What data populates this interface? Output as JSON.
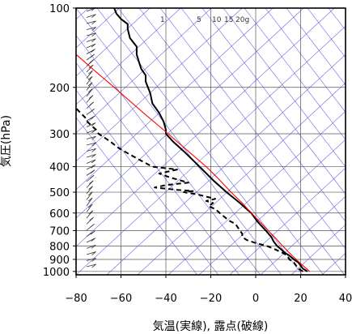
{
  "chart_data": {
    "type": "line",
    "title": "",
    "xlabel": "気温(実線), 露点(破線)",
    "ylabel": "気圧(hPa)",
    "xlim": [
      -80,
      40
    ],
    "ylim": [
      1030,
      100
    ],
    "y_scale": "log",
    "x_ticks": [
      -80,
      -60,
      -40,
      -20,
      0,
      20,
      40
    ],
    "x_tick_labels": [
      "−80",
      "−60",
      "−40",
      "−20",
      "0",
      "20",
      "40"
    ],
    "y_ticks": [
      1000,
      900,
      800,
      700,
      600,
      500,
      400,
      300,
      200,
      100
    ],
    "y_tick_labels": [
      "1000",
      "900",
      "800",
      "700",
      "600",
      "500",
      "400",
      "300",
      "200",
      "100"
    ],
    "grid": true,
    "mixing_ratio_labels": [
      "1",
      "5",
      "10",
      "15",
      "20g"
    ],
    "colors": {
      "temperature": "#000000",
      "dewpoint": "#000000",
      "parcel": "#ff0000",
      "isotherms_adiabats": "#5a5ae6",
      "grid": "#555555"
    },
    "series": [
      {
        "key": "temperature",
        "style": "solid",
        "points": [
          {
            "p": 1000,
            "x": 23
          },
          {
            "p": 975,
            "x": 21
          },
          {
            "p": 950,
            "x": 20
          },
          {
            "p": 925,
            "x": 19
          },
          {
            "p": 900,
            "x": 17
          },
          {
            "p": 870,
            "x": 15
          },
          {
            "p": 850,
            "x": 13
          },
          {
            "p": 820,
            "x": 11
          },
          {
            "p": 800,
            "x": 9.5
          },
          {
            "p": 770,
            "x": 8
          },
          {
            "p": 740,
            "x": 7
          },
          {
            "p": 700,
            "x": 4.5
          },
          {
            "p": 650,
            "x": 1
          },
          {
            "p": 600,
            "x": -2
          },
          {
            "p": 570,
            "x": -5
          },
          {
            "p": 550,
            "x": -7
          },
          {
            "p": 500,
            "x": -13
          },
          {
            "p": 450,
            "x": -19
          },
          {
            "p": 400,
            "x": -25
          },
          {
            "p": 350,
            "x": -32
          },
          {
            "p": 320,
            "x": -37
          },
          {
            "p": 300,
            "x": -40
          },
          {
            "p": 290,
            "x": -40
          },
          {
            "p": 270,
            "x": -41
          },
          {
            "p": 250,
            "x": -43
          },
          {
            "p": 230,
            "x": -46
          },
          {
            "p": 210,
            "x": -47
          },
          {
            "p": 190,
            "x": -49
          },
          {
            "p": 180,
            "x": -49
          },
          {
            "p": 170,
            "x": -51
          },
          {
            "p": 160,
            "x": -52
          },
          {
            "p": 150,
            "x": -53
          },
          {
            "p": 140,
            "x": -53
          },
          {
            "p": 130,
            "x": -56
          },
          {
            "p": 120,
            "x": -57
          },
          {
            "p": 115,
            "x": -57
          },
          {
            "p": 110,
            "x": -60
          },
          {
            "p": 105,
            "x": -62
          },
          {
            "p": 100,
            "x": -63
          }
        ]
      },
      {
        "key": "dewpoint",
        "style": "dashed",
        "points": [
          {
            "p": 1000,
            "x": 21
          },
          {
            "p": 975,
            "x": 19
          },
          {
            "p": 950,
            "x": 18
          },
          {
            "p": 925,
            "x": 17
          },
          {
            "p": 900,
            "x": 15
          },
          {
            "p": 870,
            "x": 14
          },
          {
            "p": 850,
            "x": 12
          },
          {
            "p": 820,
            "x": 8
          },
          {
            "p": 800,
            "x": 5
          },
          {
            "p": 780,
            "x": 0
          },
          {
            "p": 760,
            "x": -4
          },
          {
            "p": 740,
            "x": -6
          },
          {
            "p": 720,
            "x": -6
          },
          {
            "p": 700,
            "x": -7
          },
          {
            "p": 680,
            "x": -8
          },
          {
            "p": 660,
            "x": -9
          },
          {
            "p": 640,
            "x": -12
          },
          {
            "p": 620,
            "x": -14
          },
          {
            "p": 600,
            "x": -16
          },
          {
            "p": 580,
            "x": -18
          },
          {
            "p": 565,
            "x": -21
          },
          {
            "p": 550,
            "x": -19
          },
          {
            "p": 540,
            "x": -22
          },
          {
            "p": 530,
            "x": -18
          },
          {
            "p": 520,
            "x": -22
          },
          {
            "p": 510,
            "x": -26
          },
          {
            "p": 500,
            "x": -32
          },
          {
            "p": 495,
            "x": -28
          },
          {
            "p": 490,
            "x": -35
          },
          {
            "p": 480,
            "x": -45
          },
          {
            "p": 470,
            "x": -40
          },
          {
            "p": 460,
            "x": -30
          },
          {
            "p": 450,
            "x": -34
          },
          {
            "p": 440,
            "x": -38
          },
          {
            "p": 425,
            "x": -43
          },
          {
            "p": 410,
            "x": -35
          },
          {
            "p": 400,
            "x": -46
          },
          {
            "p": 380,
            "x": -51
          },
          {
            "p": 360,
            "x": -56
          },
          {
            "p": 340,
            "x": -61
          },
          {
            "p": 320,
            "x": -65
          },
          {
            "p": 300,
            "x": -70
          },
          {
            "p": 290,
            "x": -71
          },
          {
            "p": 280,
            "x": -73
          },
          {
            "p": 270,
            "x": -75
          },
          {
            "p": 260,
            "x": -76
          },
          {
            "p": 250,
            "x": -78
          },
          {
            "p": 240,
            "x": -80
          }
        ]
      },
      {
        "key": "parcel",
        "style": "solid",
        "points": [
          {
            "p": 1000,
            "x": 24
          },
          {
            "p": 950,
            "x": 21
          },
          {
            "p": 900,
            "x": 18
          },
          {
            "p": 850,
            "x": 15
          },
          {
            "p": 800,
            "x": 12
          },
          {
            "p": 750,
            "x": 9
          },
          {
            "p": 700,
            "x": 5.5
          },
          {
            "p": 650,
            "x": 2
          },
          {
            "p": 600,
            "x": -2
          },
          {
            "p": 550,
            "x": -6
          },
          {
            "p": 500,
            "x": -11
          },
          {
            "p": 450,
            "x": -16
          },
          {
            "p": 400,
            "x": -22
          },
          {
            "p": 350,
            "x": -30
          },
          {
            "p": 300,
            "x": -39
          },
          {
            "p": 250,
            "x": -50
          },
          {
            "p": 200,
            "x": -63
          },
          {
            "p": 175,
            "x": -71
          },
          {
            "p": 150,
            "x": -80
          }
        ]
      }
    ]
  }
}
